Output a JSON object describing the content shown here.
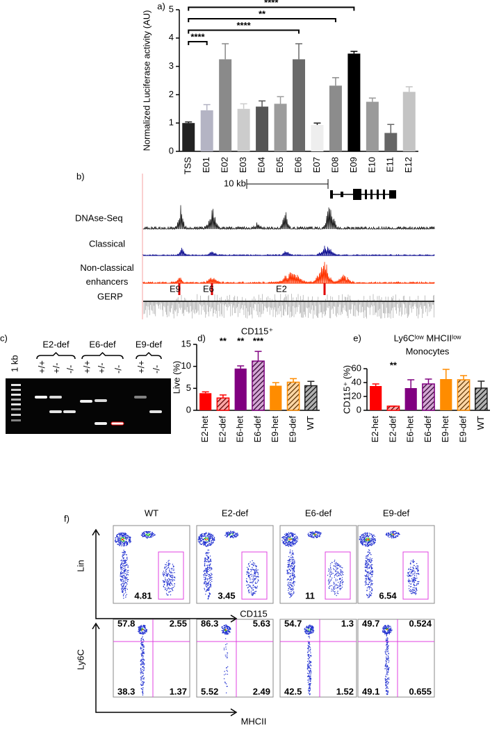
{
  "chart_data": [
    {
      "type": "bar",
      "panel_label": "a)",
      "ylabel": "Normalized Luciferase activity (AU)",
      "categories": [
        "TSS",
        "E01",
        "E02",
        "E03",
        "E04",
        "E05",
        "E06",
        "E07",
        "E08",
        "E09",
        "E10",
        "E11",
        "E12"
      ],
      "values": [
        1.0,
        1.45,
        3.25,
        1.5,
        1.58,
        1.68,
        3.25,
        0.93,
        2.32,
        3.45,
        1.75,
        0.65,
        2.1
      ],
      "errors": [
        0.04,
        0.2,
        0.55,
        0.18,
        0.2,
        0.25,
        0.55,
        0.07,
        0.28,
        0.08,
        0.13,
        0.3,
        0.18
      ],
      "colors": [
        "#222222",
        "#b4b4c4",
        "#8a8a8a",
        "#cccccc",
        "#555555",
        "#9c9c9c",
        "#6a6a6a",
        "#eeeeee",
        "#8c8c8c",
        "#000000",
        "#9a9a9a",
        "#666666",
        "#c4c4c4"
      ],
      "hatch": [
        false,
        false,
        false,
        false,
        false,
        false,
        false,
        false,
        false,
        false,
        false,
        false,
        false
      ],
      "ylim": [
        0,
        5
      ],
      "yticks": [
        0,
        1,
        2,
        3,
        4,
        5
      ],
      "brackets": [
        {
          "from": "TSS",
          "to": "E01",
          "text": "****"
        },
        {
          "from": "TSS",
          "to": "E06",
          "text": "****"
        },
        {
          "from": "TSS",
          "to": "E08",
          "text": "**"
        },
        {
          "from": "TSS",
          "to": "E09",
          "text": "****"
        }
      ]
    },
    {
      "type": "bar",
      "panel_label": "d)",
      "title": "CD115⁺",
      "ylabel": "Live (%)",
      "categories": [
        "E2-het",
        "E2-def",
        "E6-het",
        "E6-def",
        "E9-het",
        "E9-def",
        "WT"
      ],
      "values": [
        3.9,
        2.8,
        9.5,
        11.2,
        5.6,
        6.4,
        5.6
      ],
      "errors": [
        0.3,
        0.7,
        0.6,
        2.2,
        0.7,
        0.8,
        1.0
      ],
      "colors": [
        "#ff0000",
        "#ff0000",
        "#800080",
        "#800080",
        "#ff8c00",
        "#ff8c00",
        "#222222"
      ],
      "hatch": [
        false,
        true,
        false,
        true,
        false,
        true,
        true
      ],
      "ylim": [
        0,
        15
      ],
      "yticks": [
        0,
        5,
        10,
        15
      ],
      "annotations": [
        {
          "category": "E2-def",
          "text": "**"
        },
        {
          "category": "E6-het",
          "text": "**"
        },
        {
          "category": "E6-def",
          "text": "***"
        }
      ]
    },
    {
      "type": "bar",
      "panel_label": "e)",
      "title": "Ly6Cˡᵒʷ MHCIIˡᵒʷ",
      "subtitle": "Monocytes",
      "ylabel": "CD115⁺ (%)",
      "categories": [
        "E2-het",
        "E2-def",
        "E6-het",
        "E6-def",
        "E9-het",
        "E9-def",
        "WT"
      ],
      "values": [
        35,
        6,
        32,
        38,
        45,
        44,
        32
      ],
      "errors": [
        3,
        0,
        12,
        7,
        14,
        6,
        10
      ],
      "colors": [
        "#ff0000",
        "#ff0000",
        "#800080",
        "#800080",
        "#ff8c00",
        "#ff8c00",
        "#222222"
      ],
      "hatch": [
        false,
        true,
        false,
        true,
        false,
        true,
        true
      ],
      "ylim": [
        0,
        60
      ],
      "yticks": [
        0,
        20,
        40,
        60
      ],
      "annotations": [
        {
          "category": "E2-def",
          "text": "**"
        }
      ]
    }
  ],
  "genome": {
    "panel_label": "b)",
    "scale": "10 kb",
    "tracks": [
      "DNAse-Seq",
      "Classical",
      "Non-classical enhancers",
      "GERP"
    ],
    "enhancers": [
      "E9",
      "E6",
      "E2"
    ]
  },
  "gel": {
    "panel_label": "c)",
    "ladder": "1 kb",
    "groups": [
      "E2-def",
      "E6-def",
      "E9-def"
    ],
    "lanes": [
      "+/+",
      "+/-",
      "-/-",
      "+/+",
      "+/-",
      "-/-",
      "+/+",
      "-/-"
    ]
  },
  "flow": {
    "panel_label": "f)",
    "columns": [
      "WT",
      "E2-def",
      "E6-def",
      "E9-def"
    ],
    "top_axes": [
      "Lin",
      "CD115"
    ],
    "bottom_axes": [
      "Ly6C",
      "MHCII"
    ],
    "gates": [
      4.81,
      3.45,
      11,
      6.54
    ],
    "quadrants": [
      [
        57.8,
        2.55,
        38.3,
        1.37
      ],
      [
        86.3,
        5.63,
        5.52,
        2.49
      ],
      [
        54.7,
        1.3,
        42.5,
        1.52
      ],
      [
        49.7,
        0.524,
        49.1,
        0.655
      ]
    ]
  }
}
